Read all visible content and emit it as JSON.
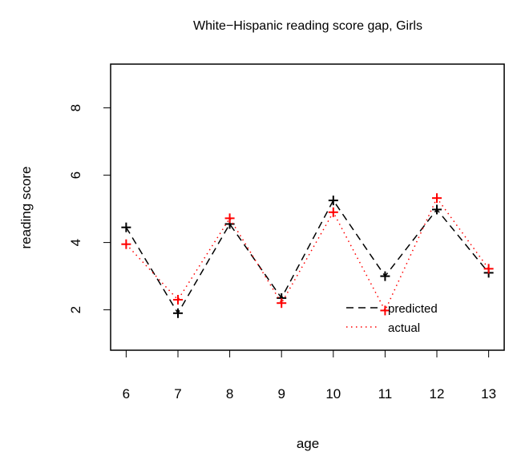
{
  "chart_data": {
    "type": "line",
    "title": "White−Hispanic reading score gap, Girls",
    "xlabel": "age",
    "ylabel": "reading score",
    "x": [
      6,
      7,
      8,
      9,
      10,
      11,
      12,
      13
    ],
    "xlim": [
      5.7,
      13.3
    ],
    "ylim": [
      0.8,
      9.3
    ],
    "y_ticks": [
      2,
      4,
      6,
      8
    ],
    "grid": false,
    "legend_position": "bottom-right",
    "series": [
      {
        "name": "predicted",
        "values": [
          4.45,
          1.9,
          4.55,
          2.35,
          5.25,
          3.0,
          4.98,
          3.1
        ],
        "color": "#000000",
        "line_style": "dashed",
        "marker": "+"
      },
      {
        "name": "actual",
        "values": [
          3.95,
          2.3,
          4.72,
          2.2,
          4.9,
          1.98,
          5.32,
          3.22
        ],
        "color": "#ff0000",
        "line_style": "dotted",
        "marker": "+"
      }
    ]
  }
}
